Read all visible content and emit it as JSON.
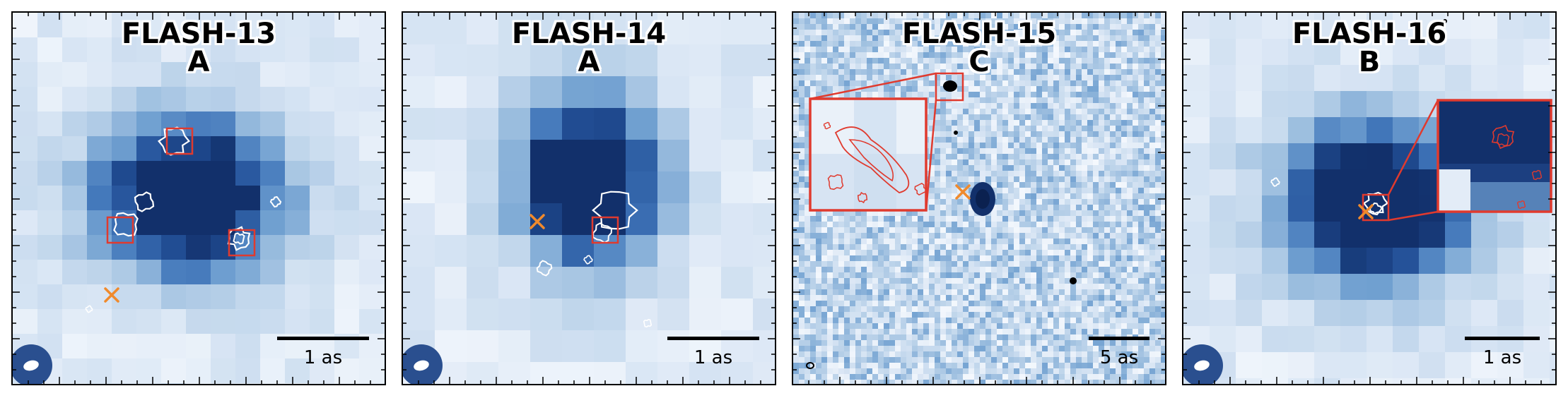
{
  "panels": [
    {
      "id": "flash-13",
      "name": "FLASH-13",
      "component": "A",
      "scale_label": "1 as",
      "style": "pixel"
    },
    {
      "id": "flash-14",
      "name": "FLASH-14",
      "component": "A",
      "scale_label": "1 as",
      "style": "pixel"
    },
    {
      "id": "flash-15",
      "name": "FLASH-15",
      "component": "C",
      "scale_label": "5 as",
      "style": "noise"
    },
    {
      "id": "flash-16",
      "name": "FLASH-16",
      "component": "B",
      "scale_label": "1 as",
      "style": "pixel"
    }
  ],
  "colors": {
    "frame": "#000000",
    "box": "#e03a2e",
    "cross": "#f08a2c",
    "contour_white": "#ffffff",
    "contour_red": "#e03a2e",
    "beam": "#2a4f8f",
    "map_dark": "#0f2d63",
    "map_light": "#f3f7fc"
  }
}
